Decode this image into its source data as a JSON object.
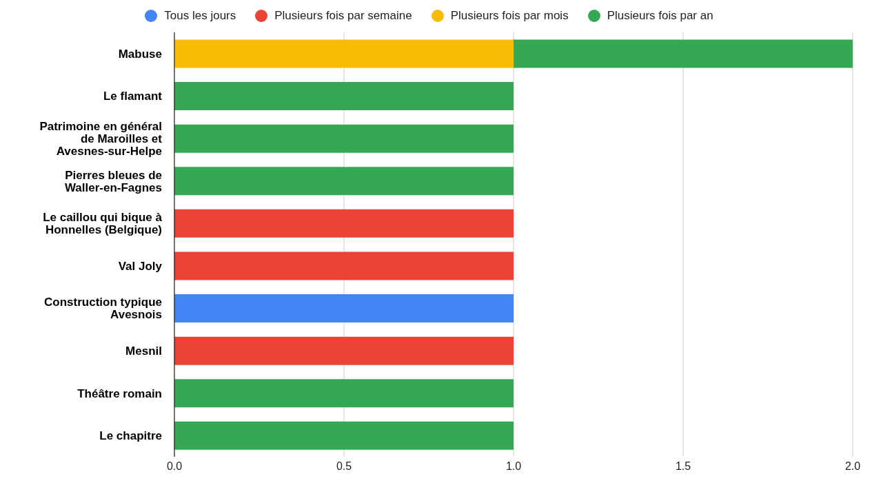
{
  "chart_data": {
    "type": "bar",
    "orientation": "horizontal",
    "stacked": true,
    "categories": [
      "Mabuse",
      "Le flamant",
      "Patrimoine en général de Maroilles et Avesnes-sur-Helpe",
      "Pierres bleues de Waller-en-Fagnes",
      "Le caillou qui bique à Honnelles (Belgique)",
      "Val Joly",
      "Construction typique Avesnois",
      "Mesnil",
      "Théâtre romain",
      "Le chapitre"
    ],
    "series": [
      {
        "name": "Tous les jours",
        "color": "#4285f4",
        "values": [
          null,
          null,
          null,
          null,
          null,
          null,
          1,
          null,
          null,
          null
        ]
      },
      {
        "name": "Plusieurs fois par semaine",
        "color": "#ea4335",
        "values": [
          null,
          null,
          null,
          null,
          1,
          1,
          null,
          1,
          null,
          null
        ]
      },
      {
        "name": "Plusieurs fois par mois",
        "color": "#fbbc04",
        "values": [
          1,
          null,
          null,
          null,
          null,
          null,
          null,
          null,
          null,
          null
        ]
      },
      {
        "name": "Plusieurs fois par an",
        "color": "#34a853",
        "values": [
          1,
          1,
          1,
          1,
          null,
          null,
          null,
          null,
          1,
          1
        ]
      }
    ],
    "xlim": [
      0,
      2
    ],
    "xticks": [
      {
        "value": 0,
        "label": "0.0"
      },
      0.5,
      {
        "value": 1,
        "label": "1.0"
      },
      1.5,
      {
        "value": 2,
        "label": "2.0"
      }
    ],
    "grid": "x",
    "legend": "top"
  }
}
